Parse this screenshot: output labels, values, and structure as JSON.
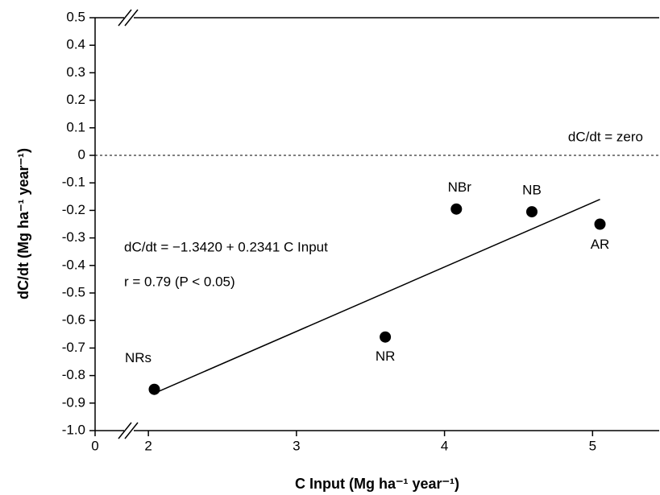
{
  "chart_data": {
    "type": "scatter",
    "x_label": "C Input (Mg ha⁻¹ year⁻¹)",
    "y_label": "dC/dt (Mg ha⁻¹ year⁻¹)",
    "xlim": [
      0,
      5.45
    ],
    "x_break": [
      0,
      1.64
    ],
    "xticks": [
      0,
      2,
      3,
      4,
      5
    ],
    "ylim": [
      -1.0,
      0.5
    ],
    "yticks": [
      0.5,
      0.4,
      0.3,
      0.2,
      0.1,
      0,
      -0.1,
      -0.2,
      -0.3,
      -0.4,
      -0.5,
      -0.6,
      -0.7,
      -0.8,
      -0.9,
      {
        "value": -1.0,
        "label": "-1.0"
      }
    ],
    "grid": false,
    "series": [
      {
        "color": "#000000",
        "x": [
          2.04,
          3.6,
          4.08,
          4.59,
          5.05
        ],
        "values": [
          -0.85,
          -0.66,
          -0.195,
          -0.205,
          -0.25
        ],
        "labels": [
          "NRs",
          "NR",
          "NBr",
          "NB",
          "AR"
        ]
      }
    ],
    "fit_line": {
      "color": "#000000",
      "x": [
        2.05,
        5.05
      ],
      "values": [
        -0.862,
        -0.16
      ]
    },
    "reference_line": {
      "y": 0,
      "label": "dC/dt = zero"
    },
    "annotations": [
      "dC/dt = −1.3420 + 0.2341 C Input",
      "r = 0.79 (P < 0.05)"
    ]
  }
}
